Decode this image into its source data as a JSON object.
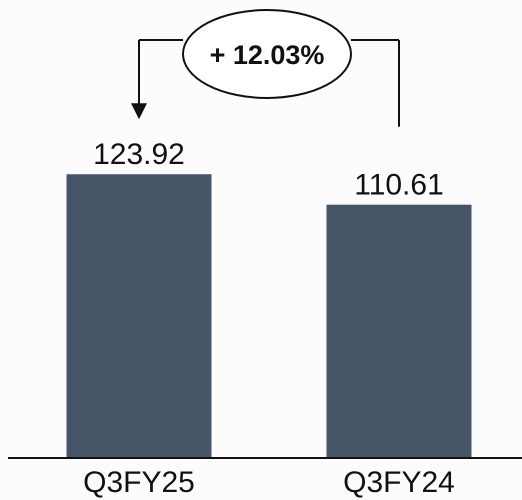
{
  "chart_data": {
    "type": "bar",
    "categories": [
      "Q3FY25",
      "Q3FY24"
    ],
    "values": [
      123.92,
      110.61
    ],
    "value_labels": [
      "123.92",
      "110.61"
    ],
    "annotation": "+ 12.03%",
    "ylim": [
      0,
      200
    ],
    "grid": false,
    "colors": {
      "bar": "#475569",
      "axis": "#111111",
      "connector": "#111111"
    }
  }
}
